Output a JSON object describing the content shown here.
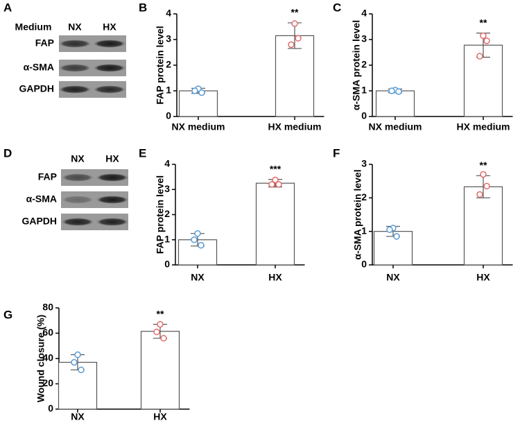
{
  "blots": [
    {
      "panel": "A",
      "header": "Medium",
      "columns": [
        "NX",
        "HX"
      ],
      "rows": [
        "FAP",
        "α-SMA",
        "GAPDH"
      ]
    },
    {
      "panel": "D",
      "columns": [
        "NX",
        "HX"
      ],
      "rows": [
        "FAP",
        "α-SMA",
        "GAPDH"
      ]
    }
  ],
  "chart_data": [
    {
      "panel": "B",
      "type": "bar",
      "ylabel": "FAP protein level",
      "categories": [
        "NX medium",
        "HX medium"
      ],
      "values": [
        1.0,
        3.15
      ],
      "errors": [
        0.1,
        0.5
      ],
      "points": [
        [
          1.08,
          0.93,
          1.0
        ],
        [
          3.62,
          3.05,
          2.8
        ]
      ],
      "bar_color": "#ffffff",
      "point_colors": [
        "#5b9bd5",
        "#e06b6b"
      ],
      "annotation": "**",
      "ylim": [
        0,
        4
      ],
      "yticks": [
        0,
        1,
        2,
        3,
        4
      ]
    },
    {
      "panel": "C",
      "type": "bar",
      "ylabel": "α-SMA protein level",
      "categories": [
        "NX medium",
        "HX medium"
      ],
      "values": [
        1.0,
        2.78
      ],
      "errors": [
        0.07,
        0.47
      ],
      "points": [
        [
          1.03,
          0.97,
          1.0
        ],
        [
          3.15,
          2.95,
          2.35
        ]
      ],
      "bar_color": "#ffffff",
      "point_colors": [
        "#5b9bd5",
        "#e06b6b"
      ],
      "annotation": "**",
      "ylim": [
        0,
        4
      ],
      "yticks": [
        0,
        1,
        2,
        3,
        4
      ]
    },
    {
      "panel": "E",
      "type": "bar",
      "ylabel": "FAP protein level",
      "categories": [
        "NX",
        "HX"
      ],
      "values": [
        1.0,
        3.25
      ],
      "errors": [
        0.25,
        0.15
      ],
      "points": [
        [
          1.25,
          0.78,
          1.0
        ],
        [
          3.38,
          3.2,
          3.2
        ]
      ],
      "bar_color": "#ffffff",
      "point_colors": [
        "#5b9bd5",
        "#e06b6b"
      ],
      "annotation": "***",
      "ylim": [
        0,
        4
      ],
      "yticks": [
        0,
        1,
        2,
        3,
        4
      ]
    },
    {
      "panel": "F",
      "type": "bar",
      "ylabel": "α-SMA protein level",
      "categories": [
        "NX",
        "HX"
      ],
      "values": [
        1.0,
        2.33
      ],
      "errors": [
        0.15,
        0.33
      ],
      "points": [
        [
          1.1,
          0.85,
          1.05
        ],
        [
          2.7,
          2.35,
          2.1
        ]
      ],
      "bar_color": "#ffffff",
      "point_colors": [
        "#5b9bd5",
        "#e06b6b"
      ],
      "annotation": "**",
      "ylim": [
        0,
        3
      ],
      "yticks": [
        0,
        1,
        2,
        3
      ]
    },
    {
      "panel": "G",
      "type": "bar",
      "ylabel": "Wound closure (%)",
      "categories": [
        "NX",
        "HX"
      ],
      "values": [
        37,
        61.5
      ],
      "errors": [
        6,
        5.5
      ],
      "points": [
        [
          43,
          31,
          37
        ],
        [
          67,
          56,
          61
        ]
      ],
      "bar_color": "#ffffff",
      "point_colors": [
        "#5b9bd5",
        "#e06b6b"
      ],
      "annotation": "**",
      "ylim": [
        0,
        80
      ],
      "yticks": [
        0,
        20,
        40,
        60,
        80
      ]
    }
  ]
}
